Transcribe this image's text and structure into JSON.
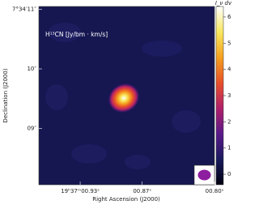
{
  "chart_data": {
    "type": "image",
    "annotation": "H¹³CN  [Jy/bm · km/s]",
    "x_label": "Right Ascension (J2000)",
    "y_label": "Declination (J2000)",
    "colorbar_label": "I_ν dv",
    "xlim": [
      0.97,
      0.8
    ],
    "xticks": [
      {
        "value": 0.93,
        "label": "19ʰ37ᵐ00.93ˢ"
      },
      {
        "value": 0.87,
        "label": "00.87ˢ"
      },
      {
        "value": 0.8,
        "label": "00.80ˢ"
      }
    ],
    "ylim": [
      8.05,
      11.05
    ],
    "yticks": [
      {
        "value": 11,
        "label": "7°34′11″"
      },
      {
        "value": 10,
        "label": "10″"
      },
      {
        "value": 9,
        "label": "09″"
      }
    ],
    "clim": [
      -0.4,
      6.4
    ],
    "cticks": [
      0,
      1,
      2,
      3,
      4,
      5,
      6
    ],
    "colormap": [
      "#000010",
      "#1a1a5e",
      "#5a1a8a",
      "#b0206a",
      "#e8502a",
      "#f5a020",
      "#f8e860",
      "#ffffff"
    ],
    "beam_color": "#8e1ea0"
  }
}
